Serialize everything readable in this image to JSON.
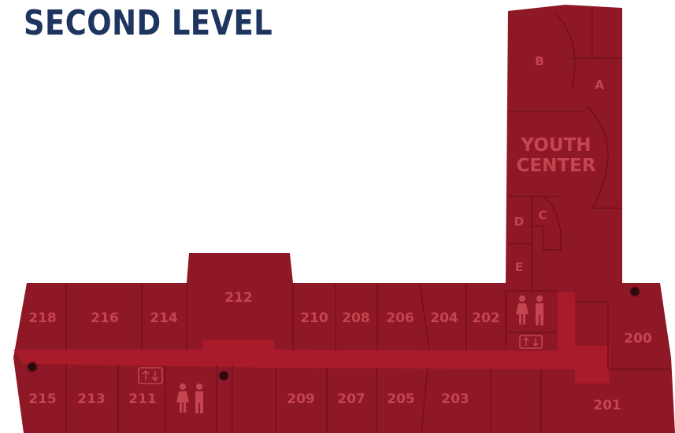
{
  "title": "SECOND LEVEL",
  "colors": {
    "floor": "#8e1825",
    "corridor": "#a91b2a",
    "lines": "#6e0f19",
    "label": "#c44450",
    "title": "#1e3560",
    "dot": "#2a0a0e"
  },
  "rooms": {
    "r218": "218",
    "r216": "216",
    "r214": "214",
    "r212": "212",
    "r210": "210",
    "r208": "208",
    "r206": "206",
    "r204": "204",
    "r202": "202",
    "r200": "200",
    "r215": "215",
    "r213": "213",
    "r211": "211",
    "r209": "209",
    "r207": "207",
    "r205": "205",
    "r203": "203",
    "r201": "201",
    "youth1": "YOUTH",
    "youth2": "CENTER",
    "rA": "A",
    "rB": "B",
    "rC": "C",
    "rD": "D",
    "rE": "E"
  },
  "icons": [
    "elevator-icon",
    "restroom-icon",
    "exit-marker-icon"
  ]
}
